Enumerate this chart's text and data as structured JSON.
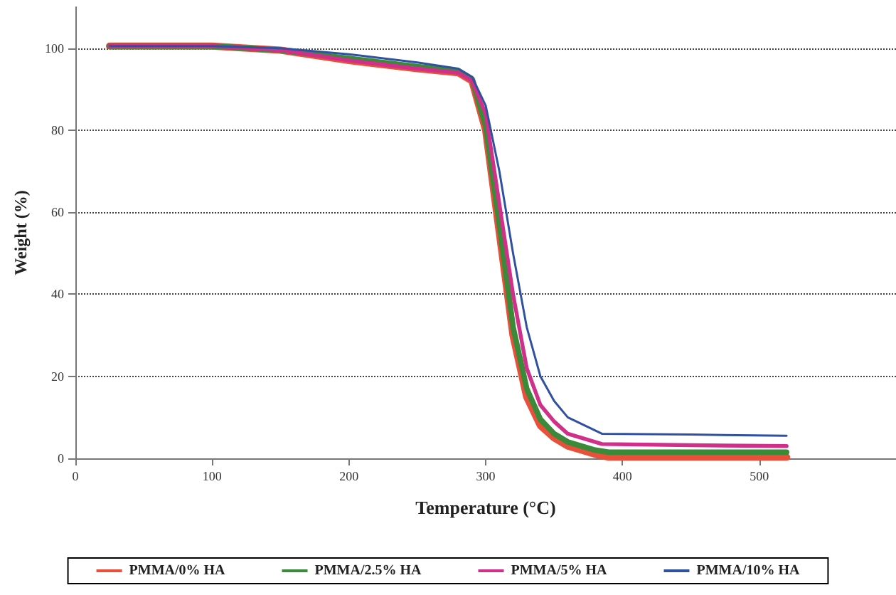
{
  "chart_data": {
    "type": "line",
    "xlabel": "Temperature (°C)",
    "ylabel": "Weight (%)",
    "xlim": [
      0,
      600
    ],
    "xticks": [
      0,
      100,
      200,
      300,
      400,
      500
    ],
    "ylim": [
      0,
      110
    ],
    "yticks": [
      0,
      20,
      40,
      60,
      80,
      100
    ],
    "grid": "y",
    "legend": "bottom",
    "marker": "none",
    "line_style": "solid",
    "series": [
      {
        "name": "PMMA/0% HA",
        "color": "#e8503a",
        "x": [
          25,
          100,
          150,
          200,
          250,
          280,
          290,
          300,
          310,
          320,
          330,
          340,
          350,
          360,
          380,
          390,
          450,
          520
        ],
        "values": [
          100.5,
          100.5,
          99.5,
          97,
          95,
          94,
          92,
          80,
          55,
          30,
          15,
          8,
          5,
          3,
          1,
          0.3,
          0.3,
          0.3
        ]
      },
      {
        "name": "PMMA/2.5% HA",
        "color": "#3a8a3a",
        "x": [
          25,
          100,
          150,
          200,
          250,
          280,
          290,
          300,
          310,
          320,
          330,
          340,
          350,
          360,
          380,
          390,
          450,
          520
        ],
        "values": [
          100.5,
          100.5,
          99.5,
          97.5,
          95.5,
          94.5,
          92.5,
          81,
          57,
          32,
          17,
          9.5,
          6,
          4,
          2,
          1.5,
          1.5,
          1.5
        ]
      },
      {
        "name": "PMMA/5% HA",
        "color": "#d0308a",
        "x": [
          25,
          100,
          150,
          200,
          250,
          280,
          290,
          300,
          310,
          320,
          330,
          340,
          350,
          360,
          385,
          450,
          520
        ],
        "values": [
          100.5,
          100.5,
          99.5,
          97,
          95,
          94,
          92,
          84,
          62,
          40,
          22,
          13,
          9,
          6,
          3.5,
          3.2,
          3
        ]
      },
      {
        "name": "PMMA/10% HA",
        "color": "#3050a0",
        "x": [
          25,
          100,
          150,
          200,
          250,
          280,
          290,
          300,
          310,
          320,
          330,
          340,
          350,
          360,
          385,
          450,
          520
        ],
        "values": [
          100.5,
          100.5,
          100,
          98.5,
          96.5,
          95,
          93,
          86,
          70,
          50,
          32,
          20,
          14,
          10,
          6,
          5.8,
          5.5
        ]
      }
    ]
  }
}
